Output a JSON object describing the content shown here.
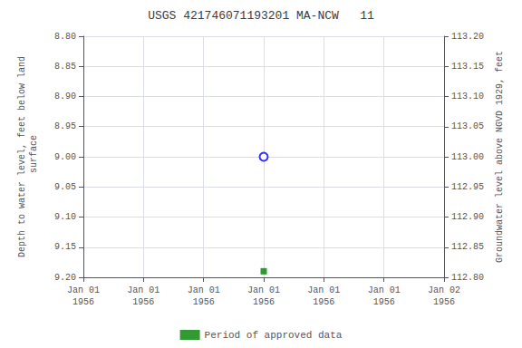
{
  "chart_data": {
    "type": "scatter",
    "title": "USGS 421746071193201 MA-NCW   11",
    "ylabel": "Depth to water level, feet below land\n surface",
    "y2label": "Groundwater level above NGVD 1929, feet",
    "categories": [
      "Jan 01\n1956",
      "Jan 01\n1956",
      "Jan 01\n1956",
      "Jan 01\n1956",
      "Jan 01\n1956",
      "Jan 01\n1956",
      "Jan 02\n1956"
    ],
    "series": [
      {
        "color": "blue",
        "marker": "open_circle",
        "values": [
          null,
          null,
          null,
          9.0,
          null,
          null,
          null
        ]
      },
      {
        "name": "Period of approved data",
        "color": "green",
        "marker": "square",
        "values": [
          null,
          null,
          null,
          9.19,
          null,
          null,
          null
        ]
      }
    ],
    "ylim": [
      9.2,
      8.8
    ],
    "yticks": [
      {
        "value": 8.8,
        "label": "8.80"
      },
      8.85,
      {
        "value": 8.9,
        "label": "8.90"
      },
      8.95,
      {
        "value": 9.0,
        "label": "9.00"
      },
      9.05,
      {
        "value": 9.1,
        "label": "9.10"
      },
      9.15,
      {
        "value": 9.2,
        "label": "9.20"
      }
    ],
    "y2lim": [
      112.8,
      113.2
    ],
    "y2ticks": [
      {
        "value": 112.8,
        "label": "112.80"
      },
      112.85,
      {
        "value": 112.9,
        "label": "112.90"
      },
      112.95,
      {
        "value": 113.0,
        "label": "113.00"
      },
      113.05,
      {
        "value": 113.1,
        "label": "113.10"
      },
      113.15,
      {
        "value": 113.2,
        "label": "113.20"
      }
    ],
    "grid": true,
    "legend": "bottom"
  }
}
